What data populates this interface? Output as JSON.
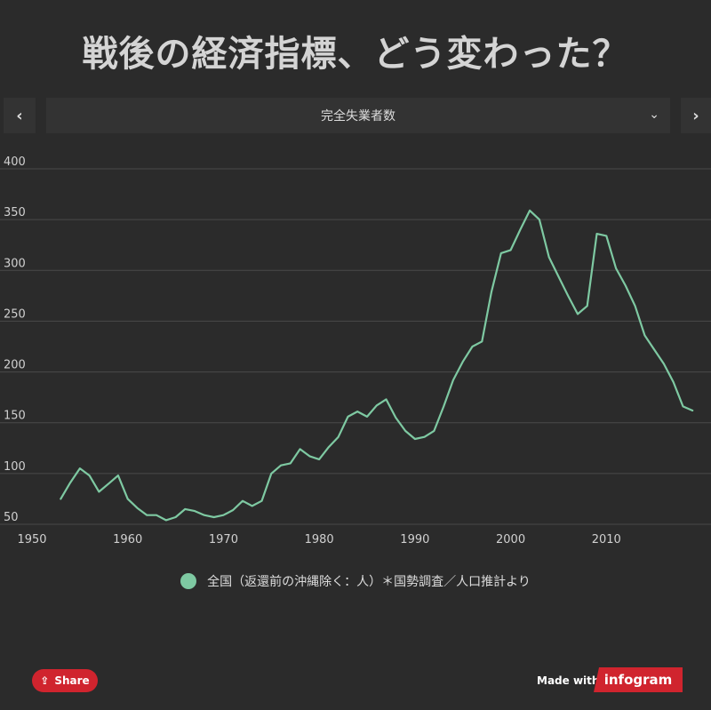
{
  "header": {
    "title": "戦後の経済指標、どう変わった？"
  },
  "nav": {
    "prev_label": "‹",
    "next_label": "›",
    "selected": "完全失業者数",
    "chevron": "⌄"
  },
  "legend": {
    "label": "全国（返還前の沖縄除く：人）＊国勢調査／人口推計より"
  },
  "footer": {
    "share_label": "Share",
    "made_with": "Made with",
    "brand": "infogram"
  },
  "colors": {
    "line": "#7ec9a2",
    "share": "#d0242e",
    "background": "#2b2b2b"
  },
  "chart_data": {
    "type": "line",
    "title": "",
    "xlabel": "",
    "ylabel": "",
    "xlim": [
      1950,
      2020
    ],
    "ylim": [
      50,
      400
    ],
    "xticks": [
      1950,
      1960,
      1970,
      1980,
      1990,
      2000,
      2010
    ],
    "yticks": [
      50,
      100,
      150,
      200,
      250,
      300,
      350,
      400
    ],
    "grid": true,
    "legend_position": "bottom",
    "series": [
      {
        "name": "全国（返還前の沖縄除く：人）＊国勢調査／人口推計より",
        "x": [
          1953,
          1954,
          1955,
          1956,
          1957,
          1958,
          1959,
          1960,
          1961,
          1962,
          1963,
          1964,
          1965,
          1966,
          1967,
          1968,
          1969,
          1970,
          1971,
          1972,
          1973,
          1974,
          1975,
          1976,
          1977,
          1978,
          1979,
          1980,
          1981,
          1982,
          1983,
          1984,
          1985,
          1986,
          1987,
          1988,
          1989,
          1990,
          1991,
          1992,
          1993,
          1994,
          1995,
          1996,
          1997,
          1998,
          1999,
          2000,
          2001,
          2002,
          2003,
          2004,
          2005,
          2006,
          2007,
          2008,
          2009,
          2010,
          2011,
          2012,
          2013,
          2014,
          2015,
          2016,
          2017,
          2018,
          2019
        ],
        "values": [
          75,
          91,
          105,
          98,
          82,
          90,
          98,
          75,
          66,
          59,
          59,
          54,
          57,
          65,
          63,
          59,
          57,
          59,
          64,
          73,
          68,
          73,
          100,
          108,
          110,
          124,
          117,
          114,
          126,
          136,
          156,
          161,
          156,
          167,
          173,
          155,
          142,
          134,
          136,
          142,
          166,
          192,
          210,
          225,
          230,
          279,
          317,
          320,
          340,
          359,
          350,
          313,
          294,
          275,
          257,
          265,
          336,
          334,
          302,
          285,
          265,
          236,
          222,
          208,
          190,
          166,
          162
        ]
      }
    ]
  }
}
